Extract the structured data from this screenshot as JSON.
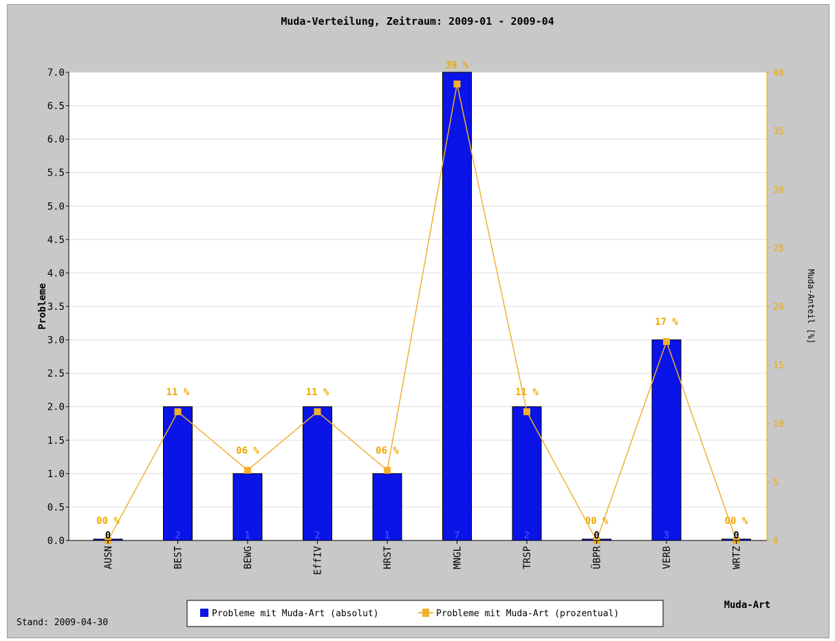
{
  "chart_data": {
    "type": "bar",
    "title": "Muda-Verteilung, Zeitraum: 2009-01 - 2009-04",
    "xlabel": "Muda-Art",
    "ylabel": "Probleme",
    "y2label": "Muda-Anteil [%]",
    "categories": [
      "AUSN",
      "BEST",
      "BEWG",
      "EffIV",
      "HRST",
      "MNGL",
      "TRSP",
      "ÜBPR",
      "VERB",
      "WRTZ"
    ],
    "series": [
      {
        "name": "Probleme mit Muda-Art (absolut)",
        "type": "bar",
        "axis": "left",
        "color": "#0a14e6",
        "values": [
          0,
          2,
          1,
          2,
          1,
          7,
          2,
          0,
          3,
          0
        ],
        "labels": [
          "0",
          "2",
          "1",
          "2",
          "1",
          "7",
          "2",
          "0",
          "3",
          "0"
        ]
      },
      {
        "name": "Probleme mit Muda-Art (prozentual)",
        "type": "line",
        "axis": "right",
        "color": "#f0b030",
        "values": [
          0,
          11,
          6,
          11,
          6,
          39,
          11,
          0,
          17,
          0
        ],
        "labels": [
          "00 %",
          "11 %",
          "06 %",
          "11 %",
          "06 %",
          "39 %",
          "11 %",
          "00 %",
          "17 %",
          "00 %"
        ]
      }
    ],
    "ylim": [
      0,
      7.0
    ],
    "yticks": [
      "0.0",
      "0.5",
      "1.0",
      "1.5",
      "2.0",
      "2.5",
      "3.0",
      "3.5",
      "4.0",
      "4.5",
      "5.0",
      "5.5",
      "6.0",
      "6.5",
      "7.0"
    ],
    "y2lim": [
      0,
      40
    ],
    "y2ticks": [
      "0",
      "5",
      "10",
      "15",
      "20",
      "25",
      "30",
      "35",
      "40"
    ],
    "grid": true,
    "legend_position": "bottom-center"
  },
  "footer": {
    "stand": "Stand: 2009-04-30"
  }
}
